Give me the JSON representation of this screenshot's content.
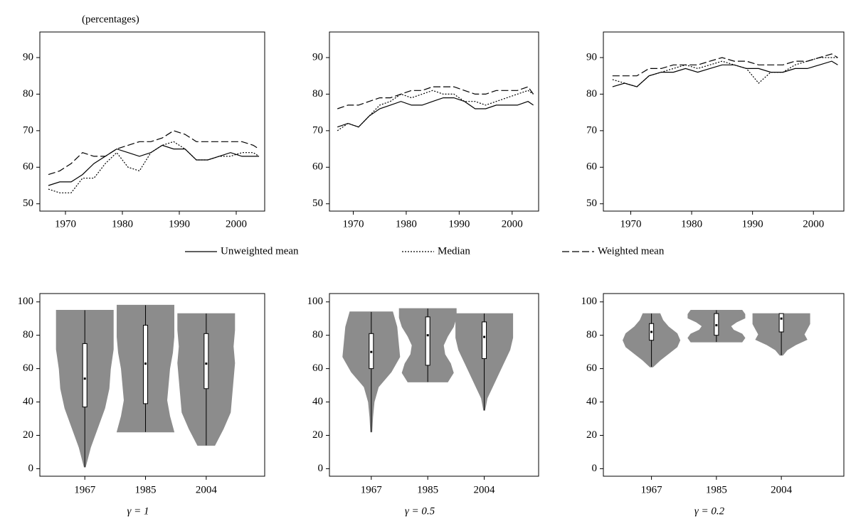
{
  "chart_data": [
    {
      "type": "line",
      "subtitle": "(percentages)",
      "x": [
        1967,
        1969,
        1971,
        1973,
        1975,
        1977,
        1979,
        1981,
        1983,
        1985,
        1987,
        1989,
        1991,
        1993,
        1995,
        1997,
        1999,
        2001,
        2003,
        2004
      ],
      "xlim": [
        1965.5,
        2005
      ],
      "xticks": [
        1970,
        1980,
        1990,
        2000
      ],
      "ylim": [
        48,
        97
      ],
      "yticks": [
        50,
        60,
        70,
        80,
        90
      ],
      "series": [
        {
          "name": "Unweighted mean",
          "color": "#000000",
          "style": "solid",
          "values": [
            55,
            56,
            56,
            58,
            61,
            63,
            65,
            64,
            63,
            64,
            66,
            65,
            65,
            62,
            62,
            63,
            64,
            63,
            63,
            63
          ]
        },
        {
          "name": "Median",
          "color": "#000000",
          "style": "dotted",
          "values": [
            54,
            53,
            53,
            57,
            57,
            61,
            64,
            60,
            59,
            64,
            66,
            67,
            65,
            62,
            62,
            63,
            63,
            64,
            64,
            63
          ]
        },
        {
          "name": "Weighted mean",
          "color": "#000000",
          "style": "dashed",
          "values": [
            58,
            59,
            61,
            64,
            63,
            63,
            65,
            66,
            67,
            67,
            68,
            70,
            69,
            67,
            67,
            67,
            67,
            67,
            66,
            65
          ]
        }
      ]
    },
    {
      "type": "line",
      "x": [
        1967,
        1969,
        1971,
        1973,
        1975,
        1977,
        1979,
        1981,
        1983,
        1985,
        1987,
        1989,
        1991,
        1993,
        1995,
        1997,
        1999,
        2001,
        2003,
        2004
      ],
      "xlim": [
        1965.5,
        2005
      ],
      "xticks": [
        1970,
        1980,
        1990,
        2000
      ],
      "ylim": [
        48,
        97
      ],
      "yticks": [
        50,
        60,
        70,
        80,
        90
      ],
      "series": [
        {
          "color": "#000000",
          "style": "solid",
          "values": [
            71,
            72,
            71,
            74,
            76,
            77,
            78,
            77,
            77,
            78,
            79,
            79,
            78,
            76,
            76,
            77,
            77,
            77,
            78,
            77
          ]
        },
        {
          "color": "#000000",
          "style": "dotted",
          "values": [
            70,
            72,
            71,
            74,
            77,
            78,
            80,
            79,
            80,
            81,
            80,
            80,
            78,
            78,
            77,
            78,
            79,
            80,
            81,
            80
          ]
        },
        {
          "color": "#000000",
          "style": "dashed",
          "values": [
            76,
            77,
            77,
            78,
            79,
            79,
            80,
            81,
            81,
            82,
            82,
            82,
            81,
            80,
            80,
            81,
            81,
            81,
            82,
            80
          ]
        }
      ]
    },
    {
      "type": "line",
      "x": [
        1967,
        1969,
        1971,
        1973,
        1975,
        1977,
        1979,
        1981,
        1983,
        1985,
        1987,
        1989,
        1991,
        1993,
        1995,
        1997,
        1999,
        2001,
        2003,
        2004
      ],
      "xlim": [
        1965.5,
        2005
      ],
      "xticks": [
        1970,
        1980,
        1990,
        2000
      ],
      "ylim": [
        48,
        97
      ],
      "yticks": [
        50,
        60,
        70,
        80,
        90
      ],
      "series": [
        {
          "color": "#000000",
          "style": "solid",
          "values": [
            82,
            83,
            82,
            85,
            86,
            86,
            87,
            86,
            87,
            88,
            88,
            87,
            87,
            86,
            86,
            87,
            87,
            88,
            89,
            88
          ]
        },
        {
          "color": "#000000",
          "style": "dotted",
          "values": [
            84,
            83,
            82,
            85,
            86,
            87,
            88,
            87,
            88,
            89,
            88,
            87,
            83,
            86,
            86,
            88,
            89,
            90,
            90,
            90
          ]
        },
        {
          "color": "#000000",
          "style": "dashed",
          "values": [
            85,
            85,
            85,
            87,
            87,
            88,
            88,
            88,
            89,
            90,
            89,
            89,
            88,
            88,
            88,
            89,
            89,
            90,
            91,
            90
          ]
        }
      ]
    },
    {
      "type": "violin",
      "xlabel": "γ = 1",
      "categories": [
        "1967",
        "1985",
        "2004"
      ],
      "color": "#8c8c8c",
      "ylim": [
        -4.5,
        105
      ],
      "yticks": [
        0,
        20,
        40,
        60,
        80,
        100
      ],
      "violins": [
        {
          "min": 1,
          "q1": 37,
          "median": 54,
          "q3": 75,
          "max": 95,
          "density": [
            0.02,
            0.2,
            0.45,
            0.7,
            0.85,
            0.9,
            1.0,
            1.0,
            1.0
          ]
        },
        {
          "min": 22,
          "q1": 39,
          "median": 63,
          "q3": 86,
          "max": 98,
          "density": [
            1.0,
            0.85,
            0.75,
            0.8,
            0.85,
            0.95,
            1.0,
            1.0,
            1.0
          ]
        },
        {
          "min": 14,
          "q1": 48,
          "median": 63,
          "q3": 81,
          "max": 93,
          "density": [
            0.3,
            0.6,
            0.85,
            0.9,
            0.95,
            1.0,
            0.95,
            1.0,
            1.0
          ]
        }
      ]
    },
    {
      "type": "violin",
      "xlabel": "γ = 0.5",
      "categories": [
        "1967",
        "1985",
        "2004"
      ],
      "color": "#8c8c8c",
      "ylim": [
        -4.5,
        105
      ],
      "yticks": [
        0,
        20,
        40,
        60,
        80,
        100
      ],
      "violins": [
        {
          "min": 22,
          "q1": 60,
          "median": 70,
          "q3": 81,
          "max": 94,
          "density": [
            0.02,
            0.05,
            0.1,
            0.25,
            0.7,
            1.0,
            0.95,
            0.9,
            0.75
          ]
        },
        {
          "min": 52,
          "q1": 62,
          "median": 80,
          "q3": 91,
          "max": 96,
          "density": [
            0.7,
            0.9,
            0.8,
            0.6,
            0.55,
            0.7,
            0.9,
            1.0,
            1.0
          ]
        },
        {
          "min": 35,
          "q1": 66,
          "median": 79,
          "q3": 88,
          "max": 93,
          "density": [
            0.02,
            0.1,
            0.3,
            0.5,
            0.7,
            0.9,
            1.0,
            1.0,
            1.0
          ]
        }
      ]
    },
    {
      "type": "violin",
      "xlabel": "γ = 0.2",
      "categories": [
        "1967",
        "1985",
        "2004"
      ],
      "color": "#8c8c8c",
      "ylim": [
        -4.5,
        105
      ],
      "yticks": [
        0,
        20,
        40,
        60,
        80,
        100
      ],
      "violins": [
        {
          "min": 61,
          "q1": 77,
          "median": 82,
          "q3": 87,
          "max": 93,
          "density": [
            0.05,
            0.3,
            0.6,
            0.9,
            1.0,
            0.9,
            0.6,
            0.4,
            0.3
          ]
        },
        {
          "min": 76,
          "q1": 80,
          "median": 86,
          "q3": 93,
          "max": 95,
          "density": [
            0.9,
            1.0,
            0.9,
            0.6,
            0.5,
            0.7,
            1.0,
            1.0,
            0.9
          ]
        },
        {
          "min": 68,
          "q1": 82,
          "median": 90,
          "q3": 93,
          "max": 93,
          "density": [
            0.05,
            0.2,
            0.5,
            0.9,
            0.8,
            0.9,
            1.0,
            1.0,
            1.0
          ]
        }
      ]
    }
  ]
}
